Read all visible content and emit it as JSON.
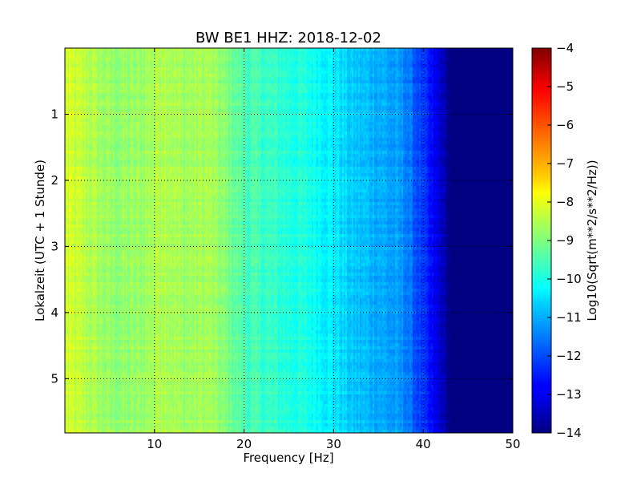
{
  "chart_data": {
    "type": "heatmap",
    "title": "BW BE1 HHZ: 2018-12-02",
    "xlabel": "Frequency [Hz]",
    "ylabel": "Lokalzeit (UTC + 1 Stunde)",
    "xlim": [
      0,
      50
    ],
    "ylim": [
      5.82,
      0.0
    ],
    "x_ticks": [
      {
        "value": 10,
        "label": "10"
      },
      {
        "value": 20,
        "label": "20"
      },
      {
        "value": 30,
        "label": "30"
      },
      {
        "value": 40,
        "label": "40"
      },
      {
        "value": 50,
        "label": "50"
      }
    ],
    "y_ticks": [
      {
        "value": 1,
        "label": "1"
      },
      {
        "value": 2,
        "label": "2"
      },
      {
        "value": 3,
        "label": "3"
      },
      {
        "value": 4,
        "label": "4"
      },
      {
        "value": 5,
        "label": "5"
      }
    ],
    "grid": true,
    "colormap": "jet",
    "colorbar": {
      "label": "Log10(Sqrt(m**2/s**2/Hz))",
      "range": [
        -14,
        -4
      ],
      "ticks": [
        {
          "value": -4,
          "label": "−4"
        },
        {
          "value": -5,
          "label": "−5"
        },
        {
          "value": -6,
          "label": "−6"
        },
        {
          "value": -7,
          "label": "−7"
        },
        {
          "value": -8,
          "label": "−8"
        },
        {
          "value": -9,
          "label": "−9"
        },
        {
          "value": -10,
          "label": "−10"
        },
        {
          "value": -11,
          "label": "−11"
        },
        {
          "value": -12,
          "label": "−12"
        },
        {
          "value": -13,
          "label": "−13"
        },
        {
          "value": -14,
          "label": "−14"
        }
      ]
    },
    "frequency_profile": [
      {
        "freq": 0,
        "value": -8.2
      },
      {
        "freq": 2,
        "value": -8.4
      },
      {
        "freq": 5,
        "value": -8.8
      },
      {
        "freq": 8,
        "value": -8.8
      },
      {
        "freq": 11,
        "value": -8.4
      },
      {
        "freq": 13,
        "value": -8.7
      },
      {
        "freq": 16,
        "value": -8.6
      },
      {
        "freq": 18,
        "value": -9.0
      },
      {
        "freq": 20,
        "value": -9.5
      },
      {
        "freq": 24,
        "value": -9.8
      },
      {
        "freq": 28,
        "value": -10.1
      },
      {
        "freq": 30,
        "value": -10.4
      },
      {
        "freq": 32,
        "value": -10.8
      },
      {
        "freq": 35,
        "value": -11.0
      },
      {
        "freq": 38,
        "value": -11.4
      },
      {
        "freq": 40,
        "value": -12.3
      },
      {
        "freq": 42,
        "value": -13.3
      },
      {
        "freq": 43,
        "value": -14.0
      },
      {
        "freq": 50,
        "value": -14.0
      }
    ]
  }
}
